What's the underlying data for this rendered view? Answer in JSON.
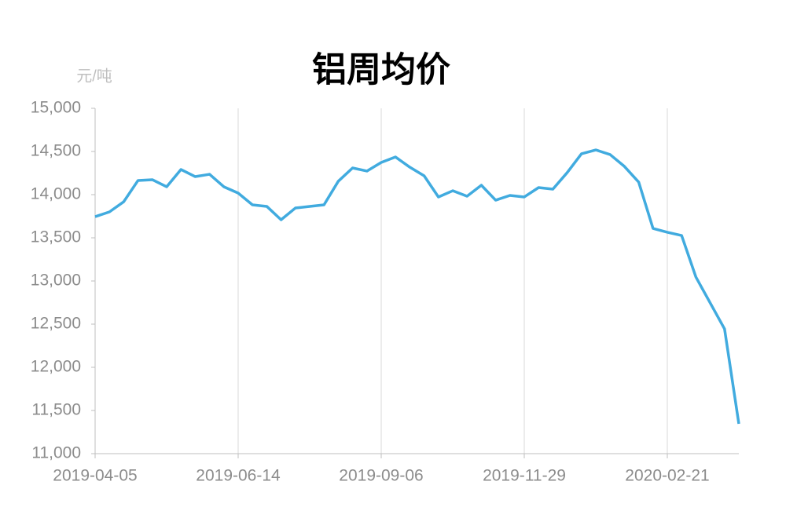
{
  "chart_data": {
    "type": "line",
    "title": "铝周均价",
    "y_unit": "元/吨",
    "categories": [
      "2019-04-05",
      null,
      null,
      null,
      null,
      null,
      null,
      null,
      null,
      null,
      "2019-06-14",
      null,
      null,
      null,
      null,
      null,
      null,
      null,
      null,
      null,
      "2019-09-06",
      null,
      null,
      null,
      null,
      null,
      null,
      null,
      null,
      null,
      "2019-11-29",
      null,
      null,
      null,
      null,
      null,
      null,
      null,
      null,
      null,
      "2020-02-21",
      null,
      null,
      null,
      null,
      null
    ],
    "series": [
      {
        "name": "铝周均价",
        "color": "#41abdf",
        "values": [
          13745,
          13800,
          13918,
          14164,
          14173,
          14091,
          14291,
          14209,
          14236,
          14091,
          14018,
          13882,
          13864,
          13709,
          13845,
          13864,
          13882,
          14155,
          14309,
          14273,
          14373,
          14436,
          14318,
          14218,
          13973,
          14045,
          13982,
          14109,
          13936,
          13991,
          13973,
          14082,
          14064,
          14255,
          14473,
          14518,
          14464,
          14327,
          14145,
          13609,
          13564,
          13527,
          13045,
          12745,
          12445,
          11345
        ]
      }
    ],
    "ylim": [
      11000,
      15000
    ],
    "yticks": [
      {
        "value": 11000,
        "label": "11,000"
      },
      {
        "value": 11500,
        "label": "11,500"
      },
      {
        "value": 12000,
        "label": "12,000"
      },
      {
        "value": 12500,
        "label": "12,500"
      },
      {
        "value": 13000,
        "label": "13,000"
      },
      {
        "value": 13500,
        "label": "13,500"
      },
      {
        "value": 14000,
        "label": "14,000"
      },
      {
        "value": 14500,
        "label": "14,500"
      },
      {
        "value": 15000,
        "label": "15,000"
      }
    ],
    "grid": true
  }
}
